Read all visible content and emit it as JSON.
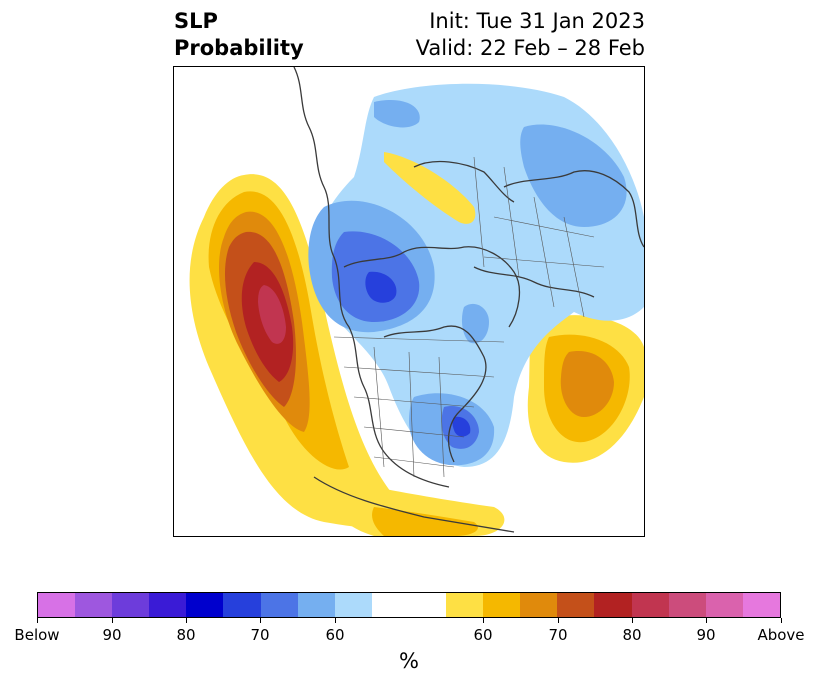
{
  "title": {
    "left_line1": "SLP",
    "left_line2": "Probability",
    "right_line1": "Init: Tue 31 Jan 2023",
    "right_line2": "Valid: 22 Feb – 28 Feb"
  },
  "colorbar": {
    "unit_label": "%",
    "colors": [
      "#d771e6",
      "#9e57df",
      "#6d3cdb",
      "#3a1bd6",
      "#0000cd",
      "#2640dc",
      "#4c74e6",
      "#75aff0",
      "#acdafb",
      "#ffffff",
      "#ffffff",
      "#fee044",
      "#f5b800",
      "#e08a0c",
      "#c4501a",
      "#b22222",
      "#c13550",
      "#cc4c7c",
      "#da62ad",
      "#e678de"
    ],
    "ticks": [
      "Below",
      "90",
      "80",
      "70",
      "60",
      "60",
      "70",
      "80",
      "90",
      "Above"
    ]
  },
  "map": {
    "projection": "north-polar-stereographic",
    "legend_colors": {
      "below_60": "#acdafb",
      "below_70": "#75aff0",
      "below_80": "#4c74e6",
      "below_90": "#2640dc",
      "above_60": "#fee044",
      "above_70": "#f5b800",
      "above_80": "#e08a0c",
      "above_90": "#c4501a",
      "above_95": "#b22222",
      "above_99": "#c13550"
    }
  }
}
